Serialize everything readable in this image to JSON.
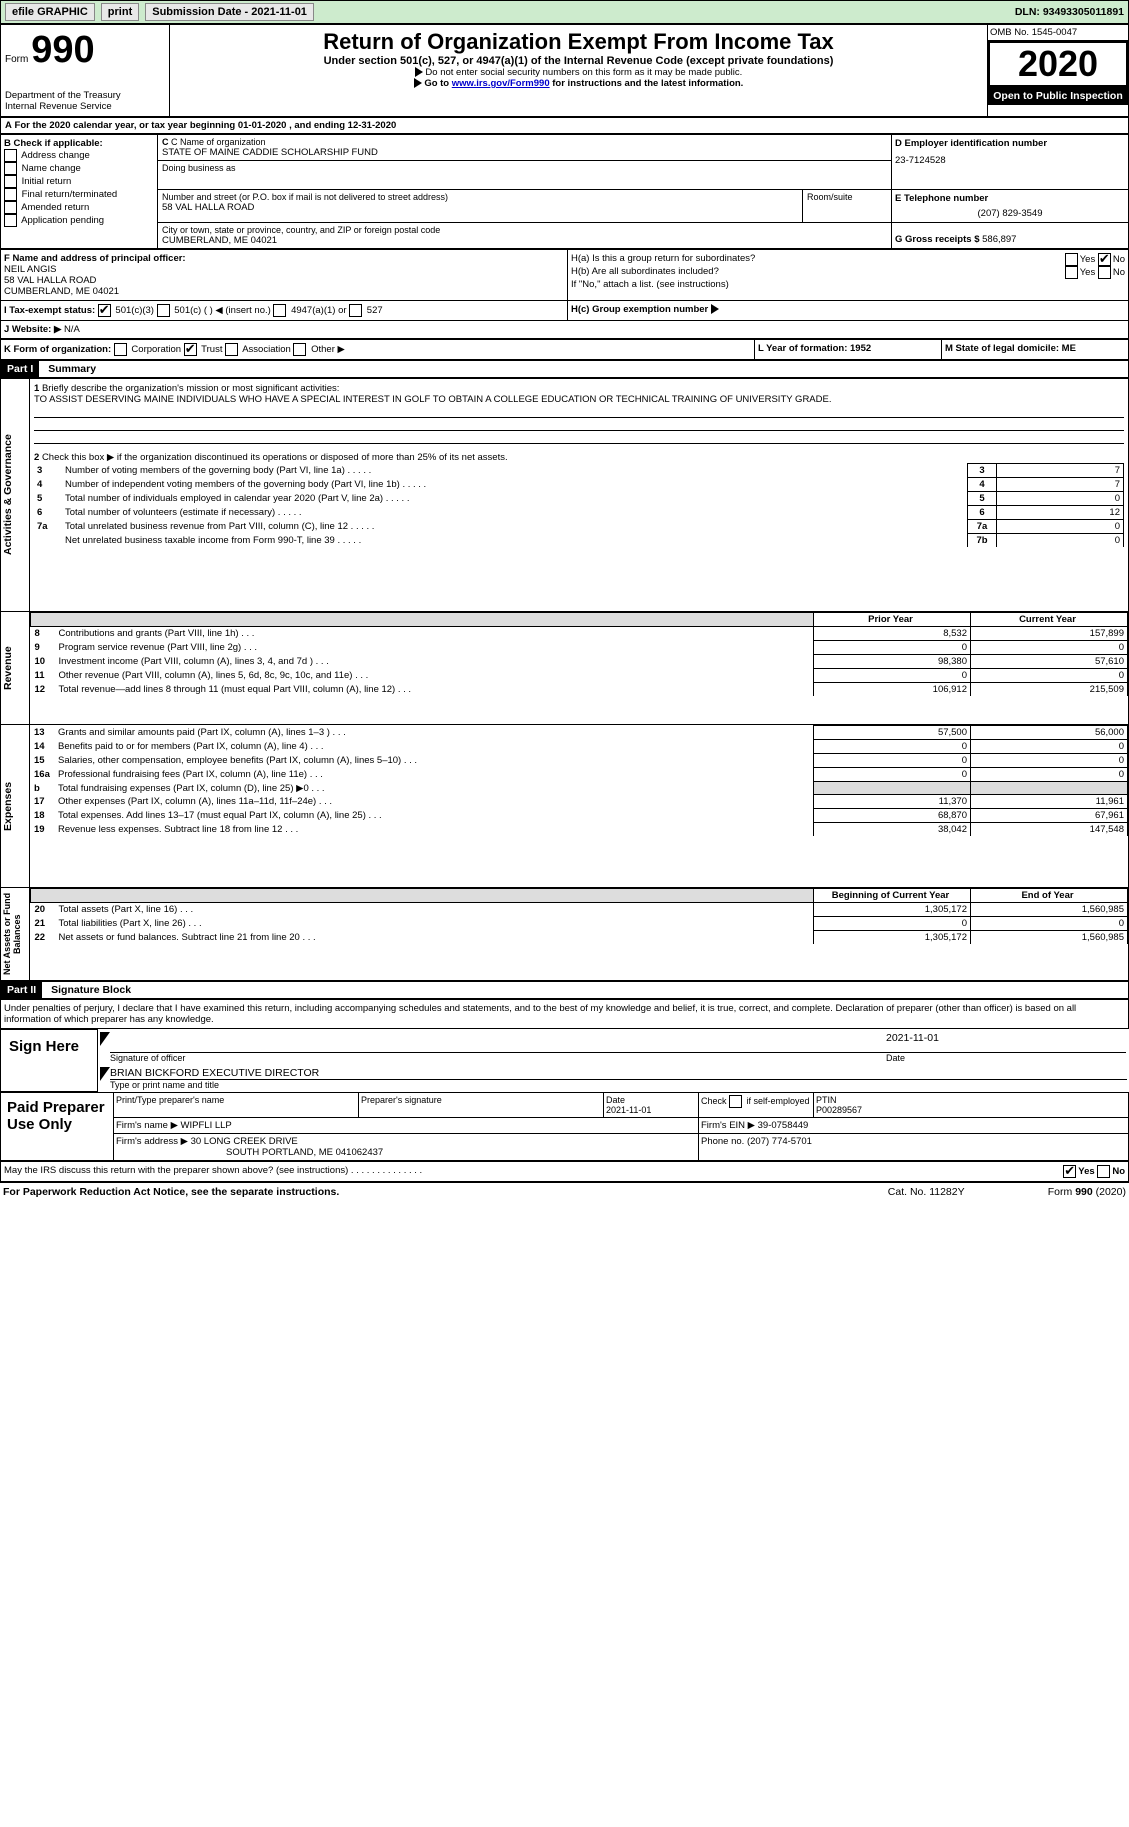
{
  "topbar": {
    "efile_label": "efile GRAPHIC",
    "print_btn": "print",
    "sub_date_label": "Submission Date - 2021-11-01",
    "dln": "DLN: 93493305011891"
  },
  "header": {
    "form_label": "Form",
    "form_num": "990",
    "dept": "Department of the Treasury",
    "irs": "Internal Revenue Service",
    "title": "Return of Organization Exempt From Income Tax",
    "subtitle": "Under section 501(c), 527, or 4947(a)(1) of the Internal Revenue Code (except private foundations)",
    "note1": "Do not enter social security numbers on this form as it may be made public.",
    "note2_pre": "Go to ",
    "note2_link": "www.irs.gov/Form990",
    "note2_post": " for instructions and the latest information.",
    "omb": "OMB No. 1545-0047",
    "year": "2020",
    "open": "Open to Public Inspection"
  },
  "sectionA": {
    "text": "For the 2020 calendar year, or tax year beginning 01-01-2020    , and ending 12-31-2020"
  },
  "boxB": {
    "label": "B Check if applicable:",
    "items": [
      "Address change",
      "Name change",
      "Initial return",
      "Final return/terminated",
      "Amended return",
      "Application pending"
    ]
  },
  "boxC": {
    "name_label": "C Name of organization",
    "name": "STATE OF MAINE CADDIE SCHOLARSHIP FUND",
    "dba_label": "Doing business as",
    "addr_label": "Number and street (or P.O. box if mail is not delivered to street address)",
    "room_label": "Room/suite",
    "addr": "58 VAL HALLA ROAD",
    "city_label": "City or town, state or province, country, and ZIP or foreign postal code",
    "city": "CUMBERLAND, ME  04021"
  },
  "boxD": {
    "label": "D Employer identification number",
    "value": "23-7124528"
  },
  "boxE": {
    "label": "E Telephone number",
    "value": "(207) 829-3549"
  },
  "boxG": {
    "label": "G Gross receipts $",
    "value": "586,897"
  },
  "boxF": {
    "label": "F Name and address of principal officer:",
    "name": "NEIL ANGIS",
    "addr1": "58 VAL HALLA ROAD",
    "addr2": "CUMBERLAND, ME  04021"
  },
  "boxH": {
    "a_label": "H(a)  Is this a group return for subordinates?",
    "b_label": "H(b)  Are all subordinates included?",
    "b_note": "If \"No,\" attach a list. (see instructions)",
    "c_label": "H(c)  Group exemption number",
    "yes": "Yes",
    "no": "No",
    "ha_no_checked": true
  },
  "rowI": {
    "label": "I    Tax-exempt status:",
    "opts": [
      "501(c)(3)",
      "501(c) (  ) ◀ (insert no.)",
      "4947(a)(1) or",
      "527"
    ],
    "checked_idx": 0
  },
  "rowJ": {
    "label": "J    Website: ▶",
    "value": "N/A"
  },
  "rowK": {
    "label": "K Form of organization:",
    "opts": [
      "Corporation",
      "Trust",
      "Association",
      "Other ▶"
    ],
    "checked_idx": 1
  },
  "rowL": {
    "label": "L Year of formation: 1952"
  },
  "rowM": {
    "label": "M State of legal domicile: ME"
  },
  "part1": {
    "label": "Part I",
    "title": "Summary",
    "mission_label": "Briefly describe the organization's mission or most significant activities:",
    "mission": "TO ASSIST DESERVING MAINE INDIVIDUALS WHO HAVE A SPECIAL INTEREST IN GOLF TO OBTAIN A COLLEGE EDUCATION OR TECHNICAL TRAINING OF UNIVERSITY GRADE.",
    "line2": "Check this box ▶    if the organization discontinued its operations or disposed of more than 25% of its net assets.",
    "side_gov": "Activities & Governance",
    "side_rev": "Revenue",
    "side_exp": "Expenses",
    "side_net": "Net Assets or Fund Balances",
    "col_prior": "Prior Year",
    "col_curr": "Current Year",
    "col_beg": "Beginning of Current Year",
    "col_end": "End of Year",
    "gov_lines": [
      {
        "n": "3",
        "label": "Number of voting members of the governing body (Part VI, line 1a)",
        "box": "3",
        "val": "7"
      },
      {
        "n": "4",
        "label": "Number of independent voting members of the governing body (Part VI, line 1b)",
        "box": "4",
        "val": "7"
      },
      {
        "n": "5",
        "label": "Total number of individuals employed in calendar year 2020 (Part V, line 2a)",
        "box": "5",
        "val": "0"
      },
      {
        "n": "6",
        "label": "Total number of volunteers (estimate if necessary)",
        "box": "6",
        "val": "12"
      },
      {
        "n": "7a",
        "label": "Total unrelated business revenue from Part VIII, column (C), line 12",
        "box": "7a",
        "val": "0"
      },
      {
        "n": "",
        "label": "Net unrelated business taxable income from Form 990-T, line 39",
        "box": "7b",
        "val": "0"
      }
    ],
    "rev_lines": [
      {
        "n": "8",
        "label": "Contributions and grants (Part VIII, line 1h)",
        "p": "8,532",
        "c": "157,899"
      },
      {
        "n": "9",
        "label": "Program service revenue (Part VIII, line 2g)",
        "p": "0",
        "c": "0"
      },
      {
        "n": "10",
        "label": "Investment income (Part VIII, column (A), lines 3, 4, and 7d )",
        "p": "98,380",
        "c": "57,610"
      },
      {
        "n": "11",
        "label": "Other revenue (Part VIII, column (A), lines 5, 6d, 8c, 9c, 10c, and 11e)",
        "p": "0",
        "c": "0"
      },
      {
        "n": "12",
        "label": "Total revenue—add lines 8 through 11 (must equal Part VIII, column (A), line 12)",
        "p": "106,912",
        "c": "215,509"
      }
    ],
    "exp_lines": [
      {
        "n": "13",
        "label": "Grants and similar amounts paid (Part IX, column (A), lines 1–3 )",
        "p": "57,500",
        "c": "56,000"
      },
      {
        "n": "14",
        "label": "Benefits paid to or for members (Part IX, column (A), line 4)",
        "p": "0",
        "c": "0"
      },
      {
        "n": "15",
        "label": "Salaries, other compensation, employee benefits (Part IX, column (A), lines 5–10)",
        "p": "0",
        "c": "0"
      },
      {
        "n": "16a",
        "label": "Professional fundraising fees (Part IX, column (A), line 11e)",
        "p": "0",
        "c": "0"
      },
      {
        "n": "b",
        "label": "Total fundraising expenses (Part IX, column (D), line 25) ▶0",
        "p": "",
        "c": "",
        "shade": true
      },
      {
        "n": "17",
        "label": "Other expenses (Part IX, column (A), lines 11a–11d, 11f–24e)",
        "p": "11,370",
        "c": "11,961"
      },
      {
        "n": "18",
        "label": "Total expenses. Add lines 13–17 (must equal Part IX, column (A), line 25)",
        "p": "68,870",
        "c": "67,961"
      },
      {
        "n": "19",
        "label": "Revenue less expenses. Subtract line 18 from line 12",
        "p": "38,042",
        "c": "147,548"
      }
    ],
    "net_lines": [
      {
        "n": "20",
        "label": "Total assets (Part X, line 16)",
        "p": "1,305,172",
        "c": "1,560,985"
      },
      {
        "n": "21",
        "label": "Total liabilities (Part X, line 26)",
        "p": "0",
        "c": "0"
      },
      {
        "n": "22",
        "label": "Net assets or fund balances. Subtract line 21 from line 20",
        "p": "1,305,172",
        "c": "1,560,985"
      }
    ]
  },
  "part2": {
    "label": "Part II",
    "title": "Signature Block",
    "decl": "Under penalties of perjury, I declare that I have examined this return, including accompanying schedules and statements, and to the best of my knowledge and belief, it is true, correct, and complete. Declaration of preparer (other than officer) is based on all information of which preparer has any knowledge.",
    "sign_here": "Sign Here",
    "sig_officer": "Signature of officer",
    "sig_date": "2021-11-01",
    "date_label": "Date",
    "officer_name": "BRIAN BICKFORD EXECUTIVE DIRECTOR",
    "type_name_label": "Type or print name and title",
    "paid_label": "Paid Preparer Use Only",
    "prep_name_label": "Print/Type preparer's name",
    "prep_sig_label": "Preparer's signature",
    "prep_date_label": "Date",
    "prep_date": "2021-11-01",
    "check_se": "Check      if self-employed",
    "ptin_label": "PTIN",
    "ptin": "P00289567",
    "firm_name_label": "Firm's name   ▶",
    "firm_name": "WIPFLI LLP",
    "firm_ein_label": "Firm's EIN ▶",
    "firm_ein": "39-0758449",
    "firm_addr_label": "Firm's address ▶",
    "firm_addr1": "30 LONG CREEK DRIVE",
    "firm_addr2": "SOUTH PORTLAND, ME  041062437",
    "phone_label": "Phone no.",
    "phone": "(207) 774-5701",
    "discuss": "May the IRS discuss this return with the preparer shown above? (see instructions)",
    "yes": "Yes",
    "no": "No",
    "discuss_yes_checked": true
  },
  "footer": {
    "left": "For Paperwork Reduction Act Notice, see the separate instructions.",
    "cat": "Cat. No. 11282Y",
    "right": "Form 990 (2020)"
  },
  "colors": {
    "topbar_bg": "#cdebcd",
    "shade": "#dddddd"
  }
}
